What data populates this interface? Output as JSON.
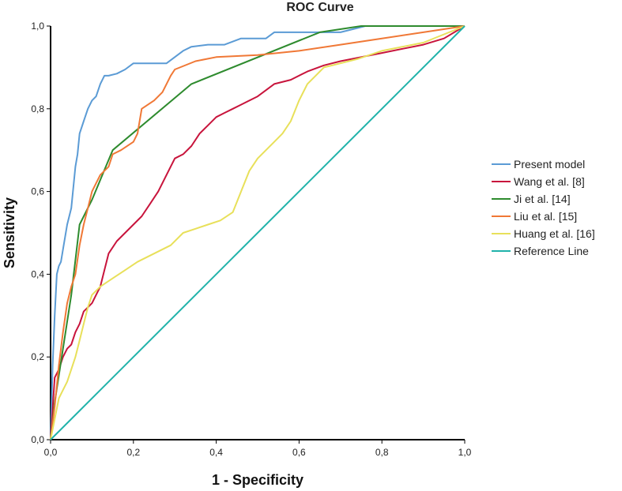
{
  "chart_data": {
    "type": "line",
    "title": "ROC Curve",
    "xlabel": "1 - Specificity",
    "ylabel": "Sensitivity",
    "xlim": [
      0,
      1
    ],
    "ylim": [
      0,
      1
    ],
    "x_ticks": [
      "0,0",
      "0,2",
      "0,4",
      "0,6",
      "0,8",
      "1,0"
    ],
    "y_ticks": [
      "0,0",
      "0,2",
      "0,4",
      "0,6",
      "0,8",
      "1,0"
    ],
    "grid": false,
    "legend_position": "right",
    "series": [
      {
        "name": "Present model",
        "color": "#5b9bd5",
        "x": [
          0,
          0.005,
          0.01,
          0.015,
          0.02,
          0.025,
          0.03,
          0.04,
          0.05,
          0.06,
          0.065,
          0.07,
          0.08,
          0.09,
          0.1,
          0.11,
          0.12,
          0.13,
          0.14,
          0.16,
          0.18,
          0.2,
          0.22,
          0.28,
          0.3,
          0.32,
          0.34,
          0.38,
          0.42,
          0.46,
          0.52,
          0.54,
          0.6,
          0.66,
          0.7,
          0.74,
          0.76,
          0.8,
          0.9,
          1.0
        ],
        "y": [
          0,
          0.18,
          0.3,
          0.4,
          0.42,
          0.43,
          0.46,
          0.52,
          0.56,
          0.66,
          0.69,
          0.74,
          0.77,
          0.8,
          0.82,
          0.83,
          0.86,
          0.88,
          0.88,
          0.885,
          0.895,
          0.91,
          0.91,
          0.91,
          0.925,
          0.94,
          0.95,
          0.955,
          0.955,
          0.97,
          0.97,
          0.985,
          0.985,
          0.985,
          0.985,
          0.995,
          1.0,
          1.0,
          1.0,
          1.0
        ]
      },
      {
        "name": "Wang et al. [8]",
        "color": "#c8143c",
        "x": [
          0,
          0.01,
          0.02,
          0.03,
          0.04,
          0.05,
          0.06,
          0.07,
          0.08,
          0.09,
          0.1,
          0.11,
          0.12,
          0.13,
          0.14,
          0.16,
          0.18,
          0.2,
          0.22,
          0.24,
          0.26,
          0.28,
          0.3,
          0.32,
          0.34,
          0.36,
          0.38,
          0.4,
          0.42,
          0.44,
          0.46,
          0.5,
          0.54,
          0.58,
          0.62,
          0.66,
          0.7,
          0.75,
          0.8,
          0.85,
          0.9,
          0.95,
          1.0
        ],
        "y": [
          0,
          0.15,
          0.17,
          0.2,
          0.22,
          0.23,
          0.26,
          0.28,
          0.31,
          0.32,
          0.33,
          0.35,
          0.37,
          0.41,
          0.45,
          0.48,
          0.5,
          0.52,
          0.54,
          0.57,
          0.6,
          0.64,
          0.68,
          0.69,
          0.71,
          0.74,
          0.76,
          0.78,
          0.79,
          0.8,
          0.81,
          0.83,
          0.86,
          0.87,
          0.89,
          0.905,
          0.915,
          0.925,
          0.935,
          0.945,
          0.955,
          0.97,
          1.0
        ]
      },
      {
        "name": "Ji et al. [14]",
        "color": "#2e8b2e",
        "x": [
          0,
          0.01,
          0.03,
          0.05,
          0.07,
          0.1,
          0.15,
          0.34,
          0.65,
          0.75,
          1.0
        ],
        "y": [
          0,
          0.09,
          0.22,
          0.35,
          0.52,
          0.58,
          0.7,
          0.86,
          0.985,
          1.0,
          1.0
        ]
      },
      {
        "name": "Liu et al. [15]",
        "color": "#f07836",
        "x": [
          0,
          0.01,
          0.02,
          0.03,
          0.04,
          0.05,
          0.06,
          0.07,
          0.08,
          0.09,
          0.1,
          0.11,
          0.12,
          0.14,
          0.15,
          0.17,
          0.2,
          0.21,
          0.22,
          0.25,
          0.27,
          0.29,
          0.3,
          0.35,
          0.4,
          0.5,
          0.6,
          0.7,
          0.8,
          0.9,
          1.0
        ],
        "y": [
          0,
          0.08,
          0.18,
          0.26,
          0.33,
          0.37,
          0.4,
          0.47,
          0.52,
          0.56,
          0.6,
          0.62,
          0.64,
          0.66,
          0.69,
          0.7,
          0.72,
          0.74,
          0.8,
          0.82,
          0.84,
          0.88,
          0.895,
          0.915,
          0.925,
          0.93,
          0.94,
          0.955,
          0.97,
          0.985,
          1.0
        ]
      },
      {
        "name": "Huang et al. [16]",
        "color": "#e8e05a",
        "x": [
          0,
          0.01,
          0.02,
          0.03,
          0.04,
          0.05,
          0.06,
          0.07,
          0.08,
          0.09,
          0.1,
          0.12,
          0.15,
          0.18,
          0.21,
          0.25,
          0.29,
          0.32,
          0.35,
          0.38,
          0.41,
          0.44,
          0.46,
          0.48,
          0.5,
          0.52,
          0.54,
          0.56,
          0.58,
          0.6,
          0.62,
          0.64,
          0.66,
          0.7,
          0.74,
          0.8,
          0.85,
          0.9,
          0.95,
          1.0
        ],
        "y": [
          0,
          0.05,
          0.1,
          0.12,
          0.14,
          0.17,
          0.2,
          0.24,
          0.28,
          0.32,
          0.35,
          0.37,
          0.39,
          0.41,
          0.43,
          0.45,
          0.47,
          0.5,
          0.51,
          0.52,
          0.53,
          0.55,
          0.6,
          0.65,
          0.68,
          0.7,
          0.72,
          0.74,
          0.77,
          0.82,
          0.86,
          0.88,
          0.9,
          0.91,
          0.92,
          0.94,
          0.95,
          0.96,
          0.98,
          1.0
        ]
      },
      {
        "name": "Reference Line",
        "color": "#20b2aa",
        "x": [
          0,
          1
        ],
        "y": [
          0,
          1
        ]
      }
    ]
  }
}
